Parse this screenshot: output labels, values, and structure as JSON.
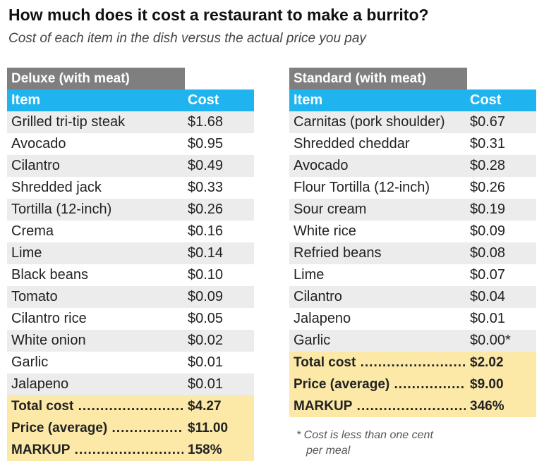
{
  "title": "How much does it cost a restaurant to make a burrito?",
  "subtitle": "Cost of each item in the dish versus the actual price you pay",
  "chart_data": {
    "type": "table",
    "tables": [
      {
        "name": "Deluxe (with meat)",
        "columns": [
          "Item",
          "Cost"
        ],
        "rows": [
          [
            "Grilled tri-tip steak",
            "$1.68"
          ],
          [
            "Avocado",
            "$0.95"
          ],
          [
            "Cilantro",
            "$0.49"
          ],
          [
            "Shredded jack",
            "$0.33"
          ],
          [
            "Tortilla (12-inch)",
            "$0.26"
          ],
          [
            "Crema",
            "$0.16"
          ],
          [
            "Lime",
            "$0.14"
          ],
          [
            "Black beans",
            "$0.10"
          ],
          [
            "Tomato",
            "$0.09"
          ],
          [
            "Cilantro rice",
            "$0.05"
          ],
          [
            "White onion",
            "$0.02"
          ],
          [
            "Garlic",
            "$0.01"
          ],
          [
            "Jalapeno",
            "$0.01"
          ]
        ],
        "summary": [
          [
            "Total cost",
            "$4.27"
          ],
          [
            "Price (average)",
            "$11.00"
          ],
          [
            "MARKUP",
            "158%"
          ]
        ]
      },
      {
        "name": "Standard (with meat)",
        "columns": [
          "Item",
          "Cost"
        ],
        "rows": [
          [
            "Carnitas (pork shoulder)",
            "$0.67"
          ],
          [
            "Shredded cheddar",
            "$0.31"
          ],
          [
            "Avocado",
            "$0.28"
          ],
          [
            "Flour Tortilla (12-inch)",
            "$0.26"
          ],
          [
            "Sour cream",
            "$0.19"
          ],
          [
            "White rice",
            "$0.09"
          ],
          [
            "Refried beans",
            "$0.08"
          ],
          [
            "Lime",
            "$0.07"
          ],
          [
            "Cilantro",
            "$0.04"
          ],
          [
            "Jalapeno",
            "$0.01"
          ],
          [
            "Garlic",
            "$0.00*"
          ]
        ],
        "summary": [
          [
            "Total cost",
            "$2.02"
          ],
          [
            "Price (average)",
            "$9.00"
          ],
          [
            "MARKUP",
            "346%"
          ]
        ]
      }
    ]
  },
  "footnote": [
    "* Cost is less than one cent",
    "per meal"
  ],
  "colors": {
    "header_blue": "#1fb4ef",
    "section_gray": "#7f7f7f",
    "stripe_gray": "#ececec",
    "summary_yellow": "#fce9a8"
  }
}
